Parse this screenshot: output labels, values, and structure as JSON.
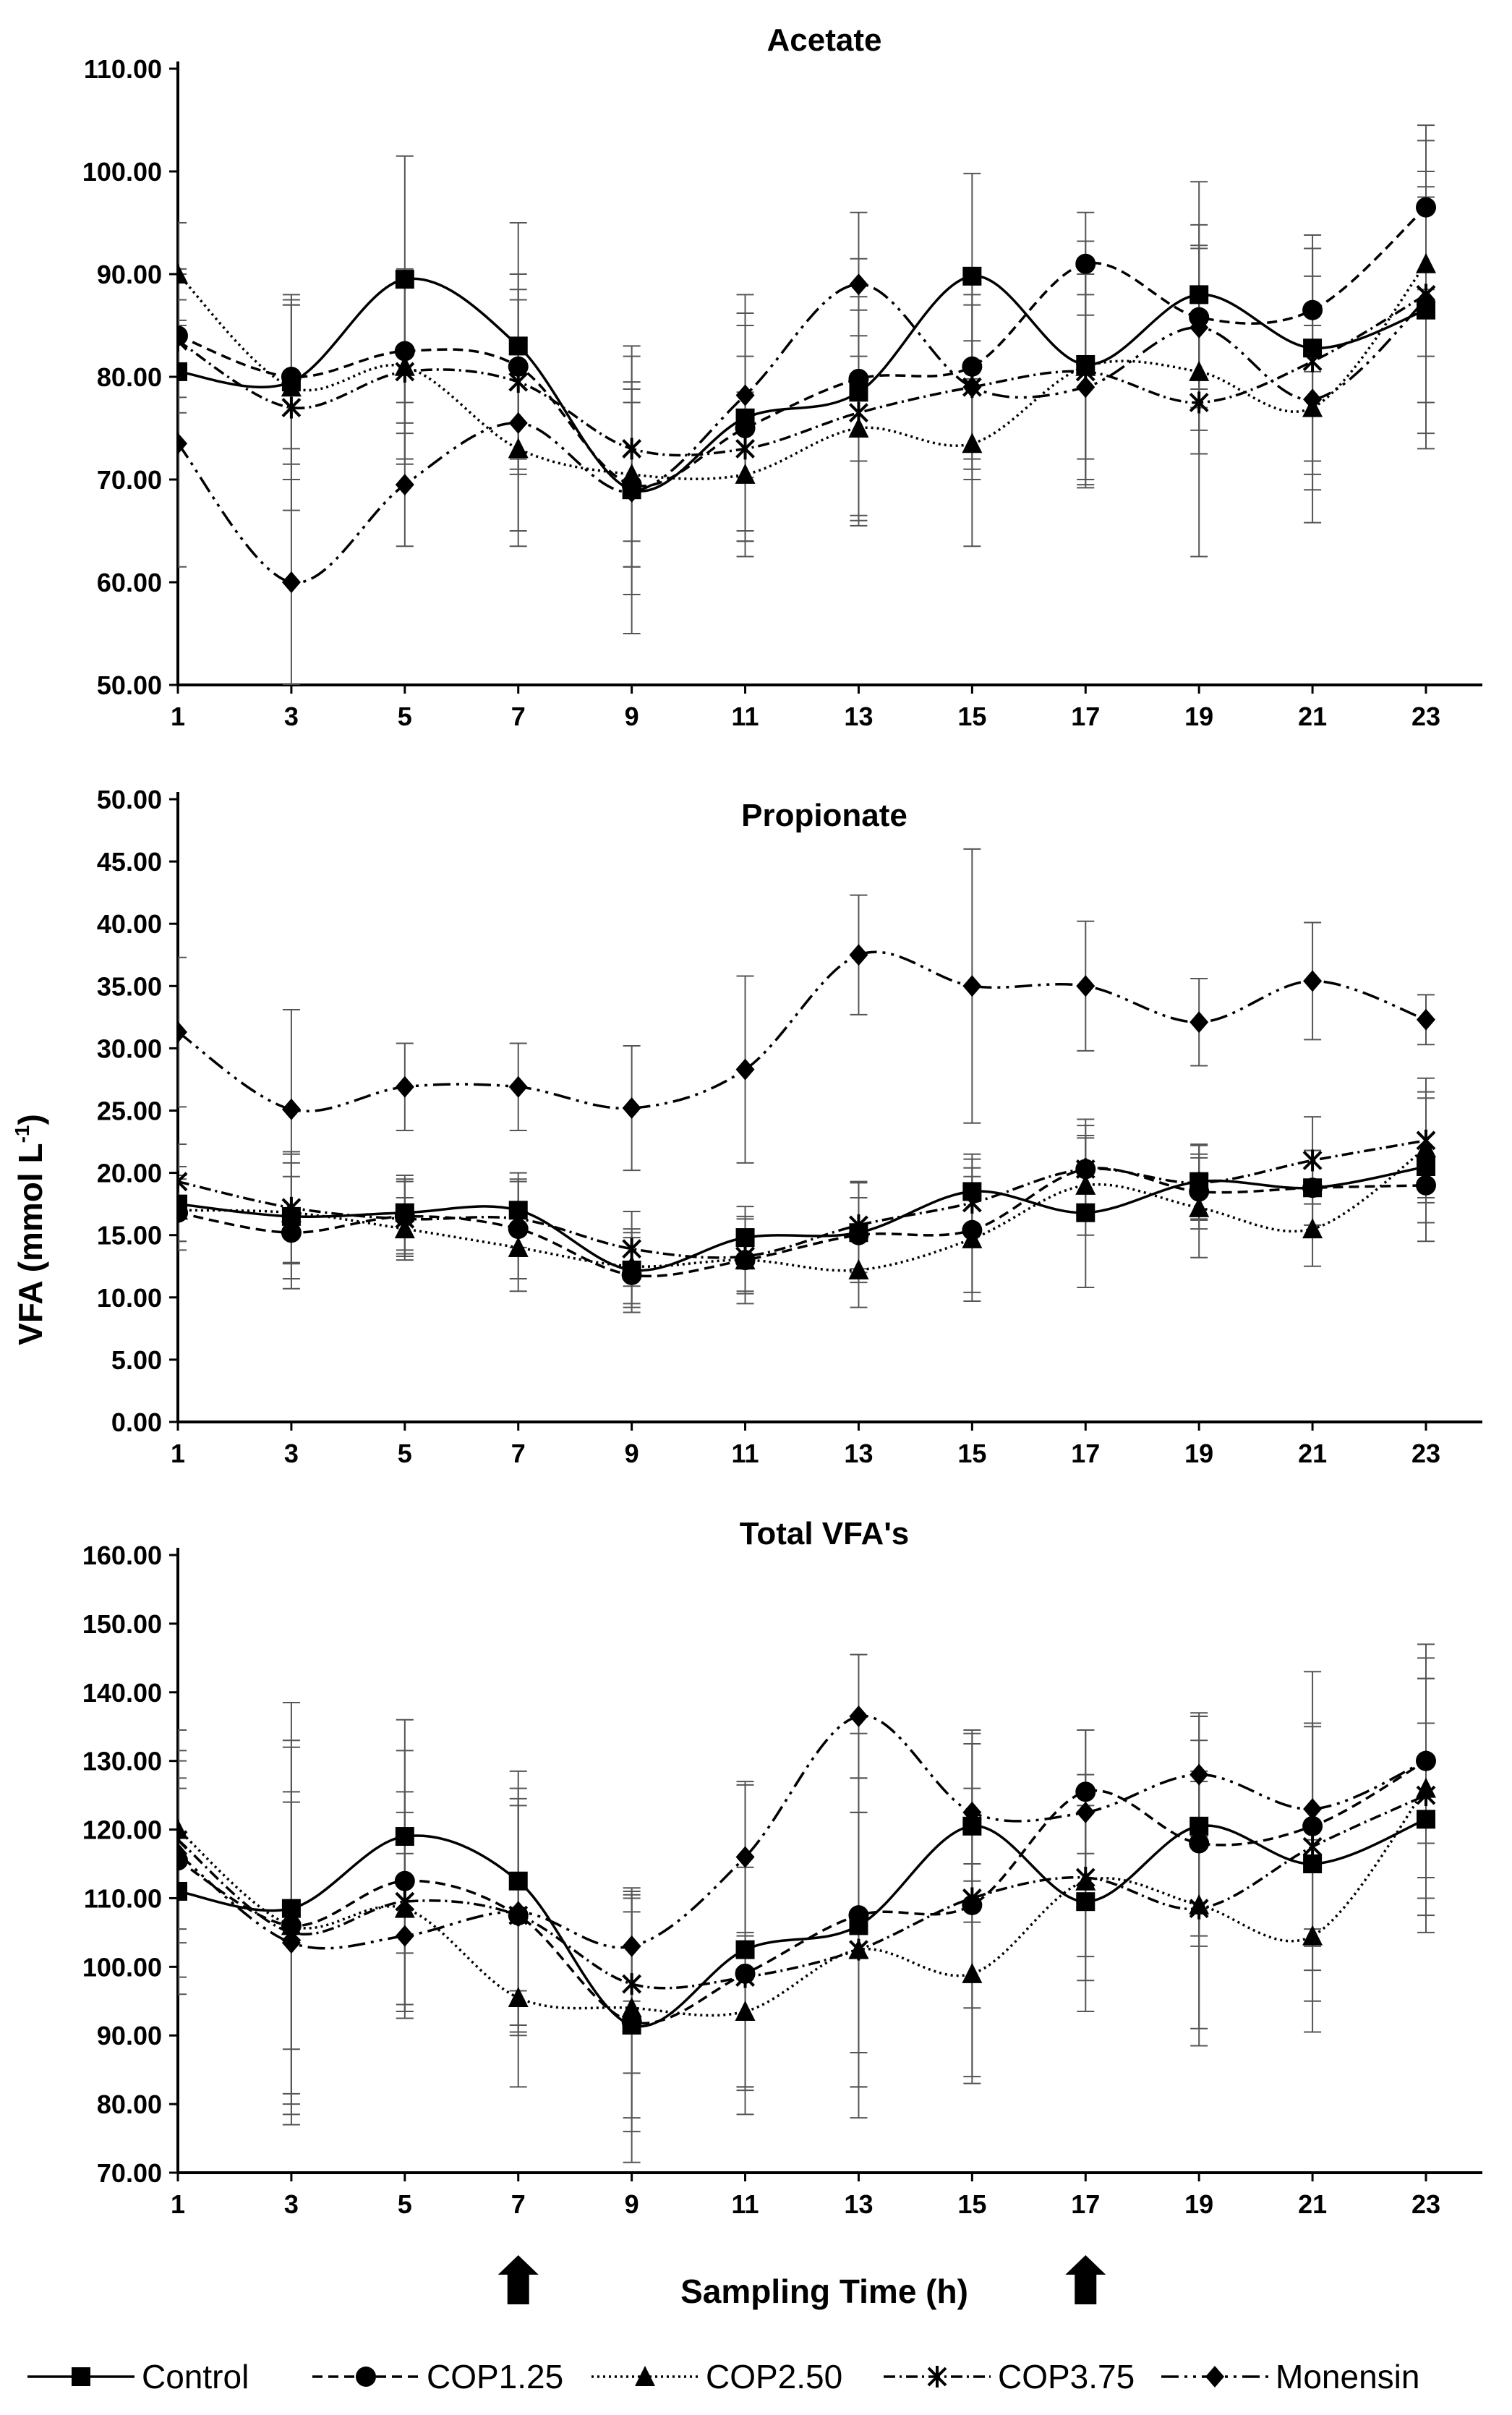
{
  "figure": {
    "ylabel_main": "VFA (mmol L",
    "ylabel_sup": "-1",
    "ylabel_end": ")",
    "xlabel": "Sampling Time (h)",
    "arrow_times": [
      7,
      17
    ]
  },
  "series_styles": [
    {
      "name": "Control",
      "color": "#000000",
      "dash": "",
      "marker": "square"
    },
    {
      "name": "COP1.25",
      "color": "#000000",
      "dash": "14 8",
      "marker": "circle"
    },
    {
      "name": "COP2.50",
      "color": "#000000",
      "dash": "3 5",
      "marker": "triangle"
    },
    {
      "name": "COP3.75",
      "color": "#000000",
      "dash": "16 6 3 6",
      "marker": "star"
    },
    {
      "name": "Monensin",
      "color": "#000000",
      "dash": "24 8 4 8 4 8",
      "marker": "diamond"
    }
  ],
  "chart_data": [
    {
      "type": "line",
      "title": "Acetate",
      "xlabel": "",
      "ylabel": "VFA (mmol L-1)",
      "x": [
        1,
        3,
        5,
        7,
        9,
        11,
        13,
        15,
        17,
        19,
        21,
        23
      ],
      "ylim": [
        50,
        110
      ],
      "yticks": [
        "110.00",
        "100.00",
        "90.00",
        "80.00",
        "70.00",
        "60.00",
        "50.00"
      ],
      "series": [
        {
          "name": "Control",
          "values": [
            80.5,
            79.5,
            89.5,
            83.0,
            69.0,
            76.0,
            78.5,
            89.8,
            81.2,
            88.0,
            82.8,
            86.5
          ],
          "errors": [
            7,
            8,
            12,
            12,
            14,
            12,
            13,
            10,
            12,
            11,
            11,
            12
          ]
        },
        {
          "name": "COP1.25",
          "values": [
            84.0,
            80.0,
            82.5,
            81.0,
            69.5,
            75.0,
            79.8,
            81.0,
            91.0,
            85.8,
            86.5,
            96.5
          ],
          "errors": [
            6,
            7,
            8,
            9,
            8,
            10,
            8,
            9,
            5,
            7,
            6,
            8
          ]
        },
        {
          "name": "COP2.50",
          "values": [
            90.0,
            79.0,
            81.0,
            73.0,
            70.5,
            70.5,
            75.0,
            73.5,
            81.0,
            80.5,
            77.0,
            91.0
          ],
          "errors": [
            5,
            9,
            9,
            8,
            9,
            8,
            9,
            10,
            9,
            8,
            8,
            9
          ]
        },
        {
          "name": "COP3.75",
          "values": [
            83.5,
            77.0,
            80.5,
            79.5,
            73.0,
            73.0,
            76.5,
            79.0,
            80.5,
            77.5,
            81.5,
            88.0
          ],
          "errors": [
            7,
            10,
            9,
            9,
            9,
            9,
            10,
            9,
            11,
            15,
            11,
            15
          ]
        },
        {
          "name": "Monensin",
          "values": [
            73.5,
            60.0,
            69.5,
            75.5,
            68.8,
            78.2,
            89.0,
            79.0,
            79.0,
            84.8,
            77.8,
            87.5
          ],
          "errors": [
            12,
            10,
            6,
            12,
            10,
            8,
            7,
            8,
            9,
            10,
            12,
            10
          ]
        }
      ]
    },
    {
      "type": "line",
      "title": "Propionate",
      "xlabel": "",
      "ylabel": "VFA (mmol L-1)",
      "x": [
        1,
        3,
        5,
        7,
        9,
        11,
        13,
        15,
        17,
        19,
        21,
        23
      ],
      "ylim": [
        0,
        50
      ],
      "yticks": [
        "50.00",
        "45.00",
        "40.00",
        "35.00",
        "30.00",
        "25.00",
        "20.00",
        "15.00",
        "10.00",
        "5.00",
        "0.00"
      ],
      "series": [
        {
          "name": "Control",
          "values": [
            17.5,
            16.5,
            16.8,
            17.0,
            12.2,
            14.8,
            15.2,
            18.5,
            16.8,
            19.3,
            18.8,
            20.5
          ],
          "errors": [
            3,
            5,
            3,
            3,
            3,
            2.5,
            4,
            3,
            6,
            3,
            3,
            6
          ]
        },
        {
          "name": "COP1.25",
          "values": [
            16.8,
            15.2,
            16.5,
            15.5,
            11.8,
            13.0,
            15.0,
            15.4,
            20.3,
            18.5,
            18.8,
            19.0
          ],
          "errors": [
            3,
            4.5,
            3,
            4,
            3,
            2.5,
            3,
            5,
            4,
            3,
            3,
            3
          ]
        },
        {
          "name": "COP2.50",
          "values": [
            17.0,
            16.8,
            15.5,
            14.0,
            12.5,
            13.0,
            12.2,
            14.7,
            19.0,
            17.2,
            15.5,
            22.0
          ],
          "errors": [
            2.5,
            4,
            2.5,
            3.5,
            3,
            3.5,
            3,
            5,
            4,
            4,
            3,
            4
          ]
        },
        {
          "name": "COP3.75",
          "values": [
            19.3,
            17.2,
            16.3,
            16.3,
            13.9,
            13.3,
            15.8,
            17.6,
            20.3,
            19.2,
            21.0,
            22.6
          ],
          "errors": [
            3,
            4.5,
            3,
            3,
            3,
            3,
            3.5,
            3.5,
            3.5,
            3,
            3.5,
            5
          ]
        },
        {
          "name": "Monensin",
          "values": [
            31.3,
            25.1,
            26.9,
            26.9,
            25.2,
            28.3,
            37.5,
            35.0,
            35.0,
            32.1,
            35.4,
            32.3
          ],
          "errors": [
            6,
            8,
            3.5,
            3.5,
            5,
            7.5,
            4.8,
            11,
            5.2,
            3.5,
            4.7,
            2
          ]
        }
      ]
    },
    {
      "type": "line",
      "title": "Total VFA's",
      "xlabel": "Sampling Time (h)",
      "ylabel": "",
      "x": [
        1,
        3,
        5,
        7,
        9,
        11,
        13,
        15,
        17,
        19,
        21,
        23
      ],
      "ylim": [
        70,
        160
      ],
      "yticks": [
        "160.00",
        "150.00",
        "140.00",
        "130.00",
        "120.00",
        "110.00",
        "100.00",
        "90.00",
        "80.00",
        "70.00"
      ],
      "series": [
        {
          "name": "Control",
          "values": [
            111.0,
            108.5,
            119.0,
            112.5,
            91.5,
            102.5,
            106.0,
            120.5,
            109.5,
            120.5,
            115.0,
            121.5
          ],
          "errors": [
            15,
            30,
            17,
            16,
            20,
            24,
            28,
            14,
            16,
            16,
            20,
            14
          ]
        },
        {
          "name": "COP1.25",
          "values": [
            115.5,
            106.0,
            112.5,
            107.5,
            92.0,
            99.0,
            107.5,
            109.0,
            125.5,
            118.0,
            120.5,
            130.0
          ],
          "errors": [
            12,
            26,
            19,
            17,
            16,
            17,
            20,
            25,
            9,
            15,
            15,
            17
          ]
        },
        {
          "name": "COP2.50",
          "values": [
            120.0,
            106.0,
            108.5,
            95.5,
            94.0,
            93.5,
            102.5,
            99.0,
            112.5,
            109.0,
            104.5,
            126.0
          ],
          "errors": [
            10,
            18,
            14,
            13,
            16,
            11,
            20,
            16,
            11,
            18,
            14,
            16
          ]
        },
        {
          "name": "COP3.75",
          "values": [
            118.5,
            105.0,
            109.5,
            107.5,
            97.5,
            98.5,
            102.5,
            110.0,
            113.0,
            108.5,
            117.5,
            125.0
          ],
          "errors": [
            13,
            28,
            16,
            16,
            13,
            16,
            20,
            16,
            15,
            20,
            18,
            20
          ]
        },
        {
          "name": "Monensin",
          "values": [
            116.5,
            103.5,
            104.5,
            108.0,
            103.0,
            116.0,
            136.5,
            122.5,
            122.5,
            128.0,
            123.0,
            130.0
          ],
          "errors": [
            18,
            22,
            12,
            18,
            8,
            11,
            9,
            10,
            12,
            9,
            20,
            12
          ]
        }
      ]
    }
  ]
}
